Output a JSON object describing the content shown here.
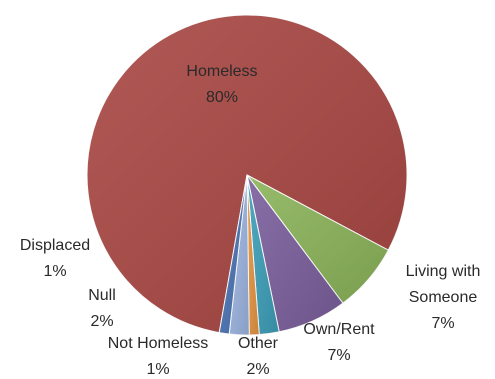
{
  "chart_data": {
    "type": "pie",
    "slices": [
      {
        "label": "Homeless",
        "pct_label": "80%",
        "value": 80,
        "color": "#a84642"
      },
      {
        "label": "Living with Someone",
        "label_lines": [
          "Living with",
          "Someone"
        ],
        "pct_label": "7%",
        "value": 7,
        "color": "#8ab359"
      },
      {
        "label": "Own/Rent",
        "pct_label": "7%",
        "value": 7,
        "color": "#7a5e9c"
      },
      {
        "label": "Other",
        "pct_label": "2%",
        "value": 2,
        "color": "#3d9fb8"
      },
      {
        "label": "Not Homeless",
        "pct_label": "1%",
        "value": 1,
        "color": "#e59442"
      },
      {
        "label": "Null",
        "pct_label": "2%",
        "value": 2,
        "color": "#9cb4e0"
      },
      {
        "label": "Displaced",
        "pct_label": "1%",
        "value": 1,
        "color": "#4a73b4"
      }
    ]
  }
}
